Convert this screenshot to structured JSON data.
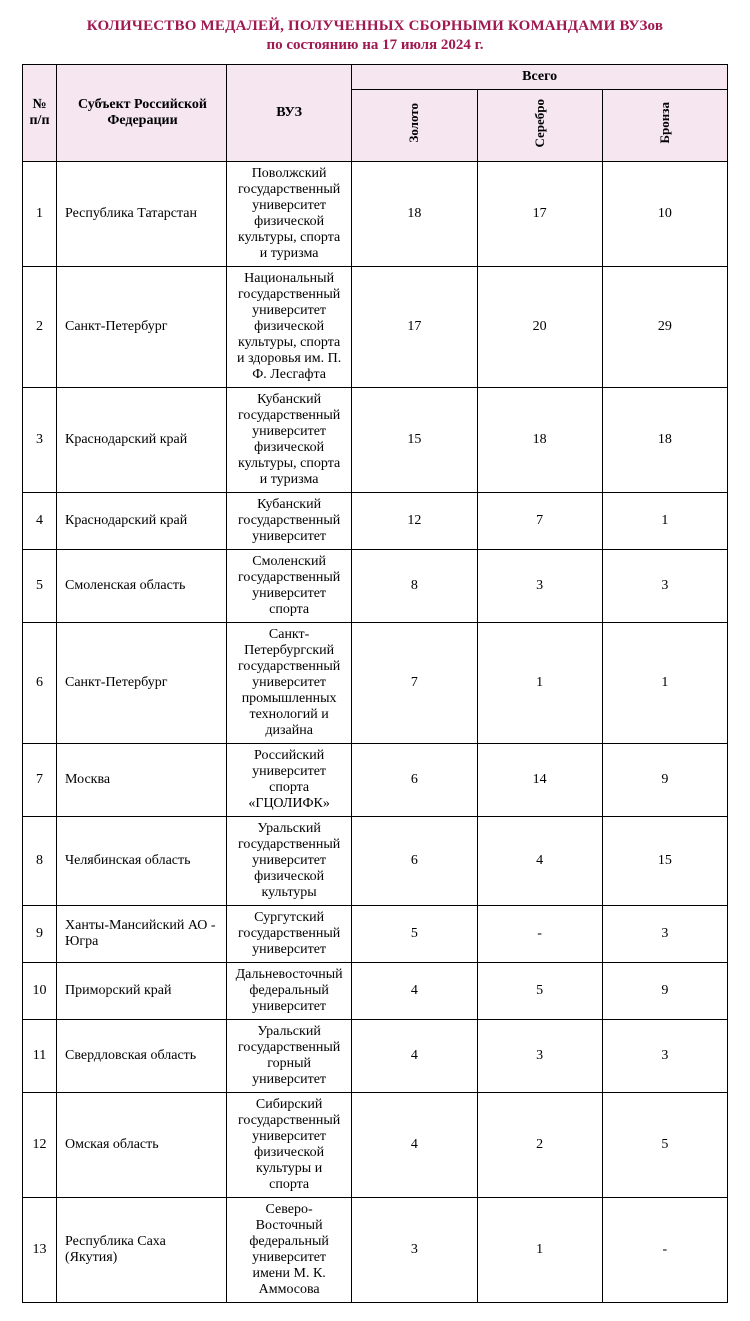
{
  "title": {
    "line1": "КОЛИЧЕСТВО МЕДАЛЕЙ, ПОЛУЧЕННЫХ СБОРНЫМИ КОМАНДАМИ ВУЗов",
    "line2": "по состоянию на 17 июля 2024 г.",
    "color": "#a01850"
  },
  "table": {
    "headers": {
      "num": "№ п/п",
      "region": "Субъект Российской Федерации",
      "university": "ВУЗ",
      "total": "Всего",
      "gold": "Золото",
      "silver": "Серебро",
      "bronze": "Бронза"
    },
    "header_bg": "#f5e6f0",
    "border_color": "#000000",
    "font_family": "Times New Roman",
    "rows": [
      {
        "num": "1",
        "region": "Республика Татарстан",
        "university": "Поволжский государственный университет физической культуры, спорта и туризма",
        "gold": "18",
        "silver": "17",
        "bronze": "10"
      },
      {
        "num": "2",
        "region": "Санкт-Петербург",
        "university": "Национальный государственный университет физической культуры, спорта и здоровья им. П. Ф. Лесгафта",
        "gold": "17",
        "silver": "20",
        "bronze": "29"
      },
      {
        "num": "3",
        "region": "Краснодарский край",
        "university": "Кубанский государственный университет физической культуры, спорта и туризма",
        "gold": "15",
        "silver": "18",
        "bronze": "18"
      },
      {
        "num": "4",
        "region": "Краснодарский край",
        "university": "Кубанский государственный университет",
        "gold": "12",
        "silver": "7",
        "bronze": "1"
      },
      {
        "num": "5",
        "region": "Смоленская область",
        "university": "Смоленский государственный университет спорта",
        "gold": "8",
        "silver": "3",
        "bronze": "3"
      },
      {
        "num": "6",
        "region": "Санкт-Петербург",
        "university": "Санкт-Петербургский государственный университет промышленных технологий и дизайна",
        "gold": "7",
        "silver": "1",
        "bronze": "1"
      },
      {
        "num": "7",
        "region": "Москва",
        "university": "Российский университет спорта «ГЦОЛИФК»",
        "gold": "6",
        "silver": "14",
        "bronze": "9"
      },
      {
        "num": "8",
        "region": "Челябинская область",
        "university": "Уральский государственный университет физической культуры",
        "gold": "6",
        "silver": "4",
        "bronze": "15"
      },
      {
        "num": "9",
        "region": "Ханты-Мансийский АО - Югра",
        "university": "Сургутский государственный университет",
        "gold": "5",
        "silver": "-",
        "bronze": "3"
      },
      {
        "num": "10",
        "region": "Приморский край",
        "university": "Дальневосточный федеральный университет",
        "gold": "4",
        "silver": "5",
        "bronze": "9"
      },
      {
        "num": "11",
        "region": "Свердловская область",
        "university": "Уральский государственный горный университет",
        "gold": "4",
        "silver": "3",
        "bronze": "3"
      },
      {
        "num": "12",
        "region": "Омская область",
        "university": "Сибирский государственный университет физической культуры и спорта",
        "gold": "4",
        "silver": "2",
        "bronze": "5"
      },
      {
        "num": "13",
        "region": "Республика Саха (Якутия)",
        "university": "Северо-Восточный федеральный университет имени М. К. Аммосова",
        "gold": "3",
        "silver": "1",
        "bronze": "-"
      }
    ]
  }
}
